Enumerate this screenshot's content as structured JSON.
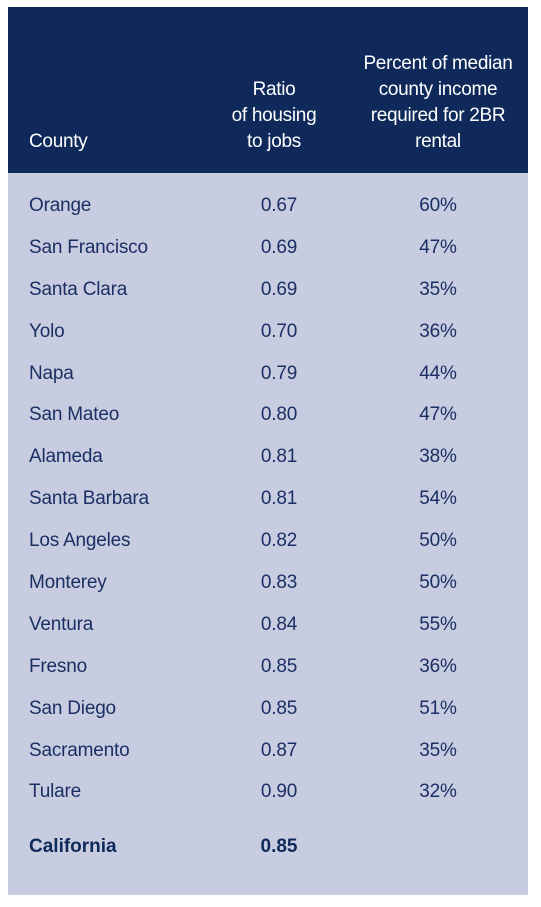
{
  "header": {
    "county": "County",
    "ratio": [
      "Ratio",
      "of housing",
      "to jobs"
    ],
    "percent": [
      "Percent of median",
      "county income",
      "required for 2BR",
      "rental"
    ]
  },
  "rows": [
    {
      "county": "Orange",
      "ratio": "0.67",
      "percent": "60%"
    },
    {
      "county": "San Francisco",
      "ratio": "0.69",
      "percent": "47%"
    },
    {
      "county": "Santa Clara",
      "ratio": "0.69",
      "percent": "35%"
    },
    {
      "county": "Yolo",
      "ratio": "0.70",
      "percent": "36%"
    },
    {
      "county": "Napa",
      "ratio": "0.79",
      "percent": "44%"
    },
    {
      "county": "San Mateo",
      "ratio": "0.80",
      "percent": "47%"
    },
    {
      "county": "Alameda",
      "ratio": "0.81",
      "percent": "38%"
    },
    {
      "county": "Santa Barbara",
      "ratio": "0.81",
      "percent": "54%"
    },
    {
      "county": "Los Angeles",
      "ratio": "0.82",
      "percent": "50%"
    },
    {
      "county": "Monterey",
      "ratio": "0.83",
      "percent": "50%"
    },
    {
      "county": "Ventura",
      "ratio": "0.84",
      "percent": "55%"
    },
    {
      "county": "Fresno",
      "ratio": "0.85",
      "percent": "36%"
    },
    {
      "county": "San Diego",
      "ratio": "0.85",
      "percent": "51%"
    },
    {
      "county": "Sacramento",
      "ratio": "0.87",
      "percent": "35%"
    },
    {
      "county": "Tulare",
      "ratio": "0.90",
      "percent": "32%"
    }
  ],
  "total": {
    "county": "California",
    "ratio": "0.85"
  },
  "colors": {
    "header_bg": "#0f2a5a",
    "body_bg": "#c8cce0",
    "text": "#1a2f63"
  }
}
